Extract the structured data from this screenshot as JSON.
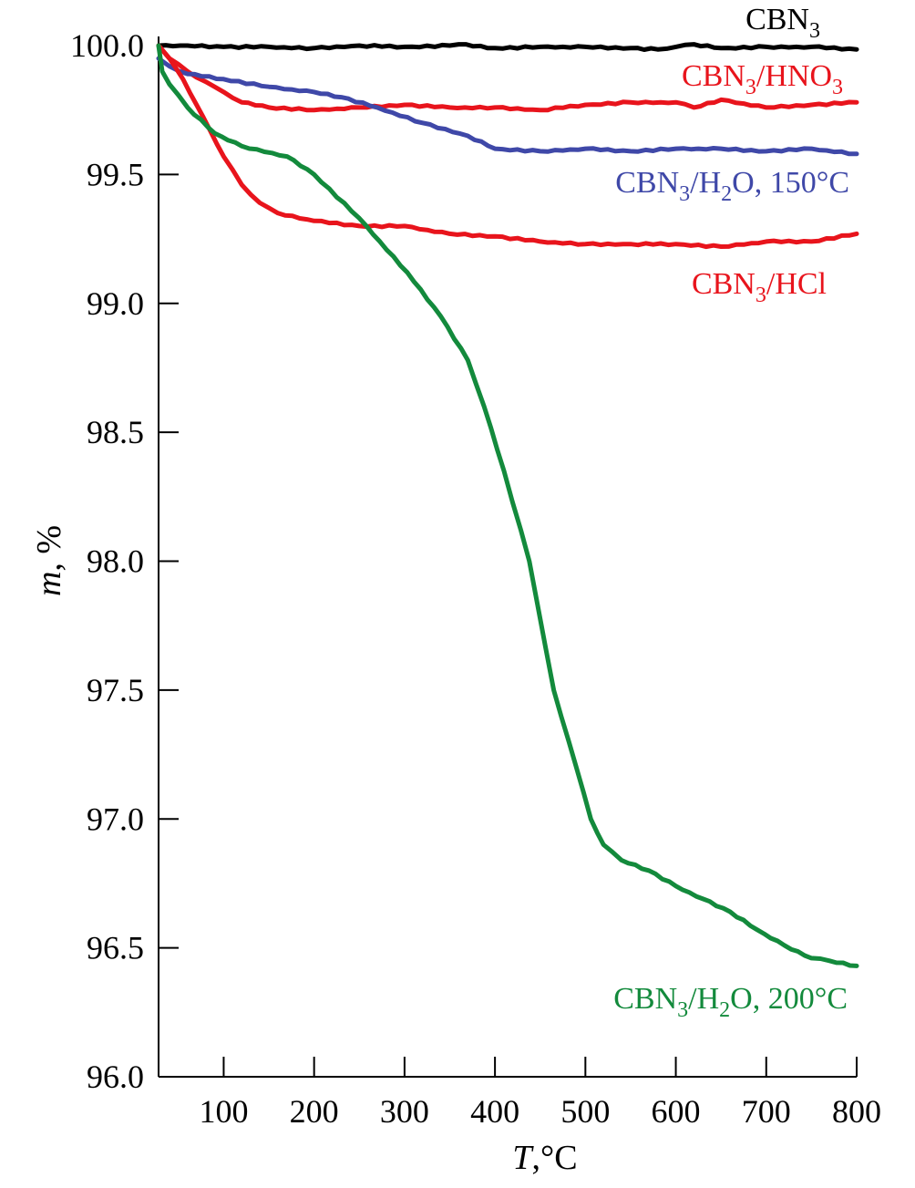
{
  "chart_data": {
    "type": "line",
    "xlabel": {
      "italic": "T",
      "rest": ",°C"
    },
    "ylabel": {
      "italic": "m",
      "rest": ", %"
    },
    "xlim": [
      28,
      800
    ],
    "ylim": [
      96.0,
      100.0
    ],
    "xticks": [
      100,
      200,
      300,
      400,
      500,
      600,
      700,
      800
    ],
    "yticks": [
      "96.0",
      "96.5",
      "97.0",
      "97.5",
      "98.0",
      "98.5",
      "99.0",
      "99.5",
      "100.0"
    ],
    "grid": false,
    "series": [
      {
        "name": "CBN3",
        "label_parts": [
          [
            "CBN",
            ""
          ],
          [
            "3",
            "sub"
          ]
        ],
        "color": "#000000",
        "x": [
          28,
          60,
          100,
          150,
          200,
          250,
          300,
          350,
          360,
          400,
          450,
          500,
          550,
          580,
          600,
          620,
          650,
          700,
          750,
          800
        ],
        "y": [
          100.0,
          100.0,
          99.995,
          99.995,
          99.99,
          100.0,
          99.995,
          100.0,
          100.005,
          99.99,
          99.995,
          99.995,
          99.99,
          99.985,
          99.995,
          100.005,
          99.99,
          99.995,
          99.995,
          99.985
        ]
      },
      {
        "name": "CBN3/HNO3",
        "label_parts": [
          [
            "CBN",
            ""
          ],
          [
            "3",
            "sub"
          ],
          [
            "/HNO",
            ""
          ],
          [
            "3",
            "sub"
          ]
        ],
        "color": "#e8141c",
        "x": [
          28,
          40,
          60,
          80,
          100,
          120,
          150,
          200,
          250,
          300,
          350,
          400,
          450,
          500,
          550,
          600,
          620,
          650,
          700,
          750,
          800
        ],
        "y": [
          100.0,
          99.95,
          99.9,
          99.86,
          99.82,
          99.78,
          99.76,
          99.75,
          99.76,
          99.77,
          99.76,
          99.76,
          99.75,
          99.77,
          99.78,
          99.78,
          99.76,
          99.79,
          99.76,
          99.77,
          99.78
        ]
      },
      {
        "name": "CBN3/H2O, 150°C",
        "label_parts": [
          [
            "CBN",
            ""
          ],
          [
            "3",
            "sub"
          ],
          [
            "/H",
            ""
          ],
          [
            "2",
            "sub"
          ],
          [
            "O, 150°C",
            ""
          ]
        ],
        "color": "#3f48a8",
        "x": [
          28,
          40,
          60,
          100,
          150,
          200,
          230,
          270,
          320,
          370,
          400,
          450,
          500,
          550,
          600,
          650,
          700,
          750,
          800
        ],
        "y": [
          99.95,
          99.92,
          99.89,
          99.87,
          99.84,
          99.82,
          99.8,
          99.76,
          99.7,
          99.65,
          99.6,
          99.59,
          99.6,
          99.59,
          99.6,
          99.6,
          99.59,
          99.6,
          99.58
        ]
      },
      {
        "name": "CBN3/HCl",
        "label_parts": [
          [
            "CBN",
            ""
          ],
          [
            "3",
            "sub"
          ],
          [
            "/HCl",
            ""
          ]
        ],
        "color": "#e8141c",
        "x": [
          28,
          40,
          55,
          70,
          85,
          100,
          120,
          140,
          160,
          200,
          250,
          300,
          350,
          400,
          450,
          500,
          550,
          600,
          650,
          700,
          750,
          800
        ],
        "y": [
          100.0,
          99.95,
          99.87,
          99.77,
          99.67,
          99.57,
          99.46,
          99.39,
          99.35,
          99.32,
          99.3,
          99.3,
          99.27,
          99.26,
          99.24,
          99.23,
          99.23,
          99.23,
          99.22,
          99.24,
          99.24,
          99.27
        ]
      },
      {
        "name": "CBN3/H2O, 200°C",
        "label_parts": [
          [
            "CBN",
            ""
          ],
          [
            "3",
            "sub"
          ],
          [
            "/H",
            ""
          ],
          [
            "2",
            "sub"
          ],
          [
            "O, 200°C",
            ""
          ]
        ],
        "color": "#138a3c",
        "x": [
          28,
          32,
          40,
          60,
          90,
          120,
          170,
          200,
          250,
          303,
          340,
          370,
          388,
          410,
          438,
          465,
          490,
          506,
          520,
          540,
          570,
          600,
          630,
          660,
          690,
          720,
          750,
          770,
          800
        ],
        "y": [
          100.0,
          99.9,
          99.85,
          99.76,
          99.66,
          99.61,
          99.57,
          99.5,
          99.33,
          99.12,
          98.95,
          98.78,
          98.6,
          98.35,
          98.0,
          97.5,
          97.2,
          97.0,
          96.9,
          96.84,
          96.8,
          96.74,
          96.69,
          96.64,
          96.57,
          96.51,
          96.46,
          96.45,
          96.43
        ]
      }
    ]
  }
}
